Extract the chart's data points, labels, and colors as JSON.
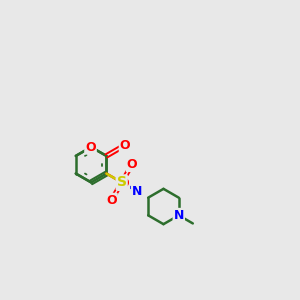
{
  "background_color": "#e8e8e8",
  "bond_color": "#2d6e2d",
  "atom_colors": {
    "O": "#ff0000",
    "N": "#0000ff",
    "S": "#cccc00",
    "C": "#2d6e2d"
  },
  "figsize": [
    3.0,
    3.0
  ],
  "dpi": 100,
  "xlim": [
    0,
    10
  ],
  "ylim": [
    0,
    10
  ]
}
